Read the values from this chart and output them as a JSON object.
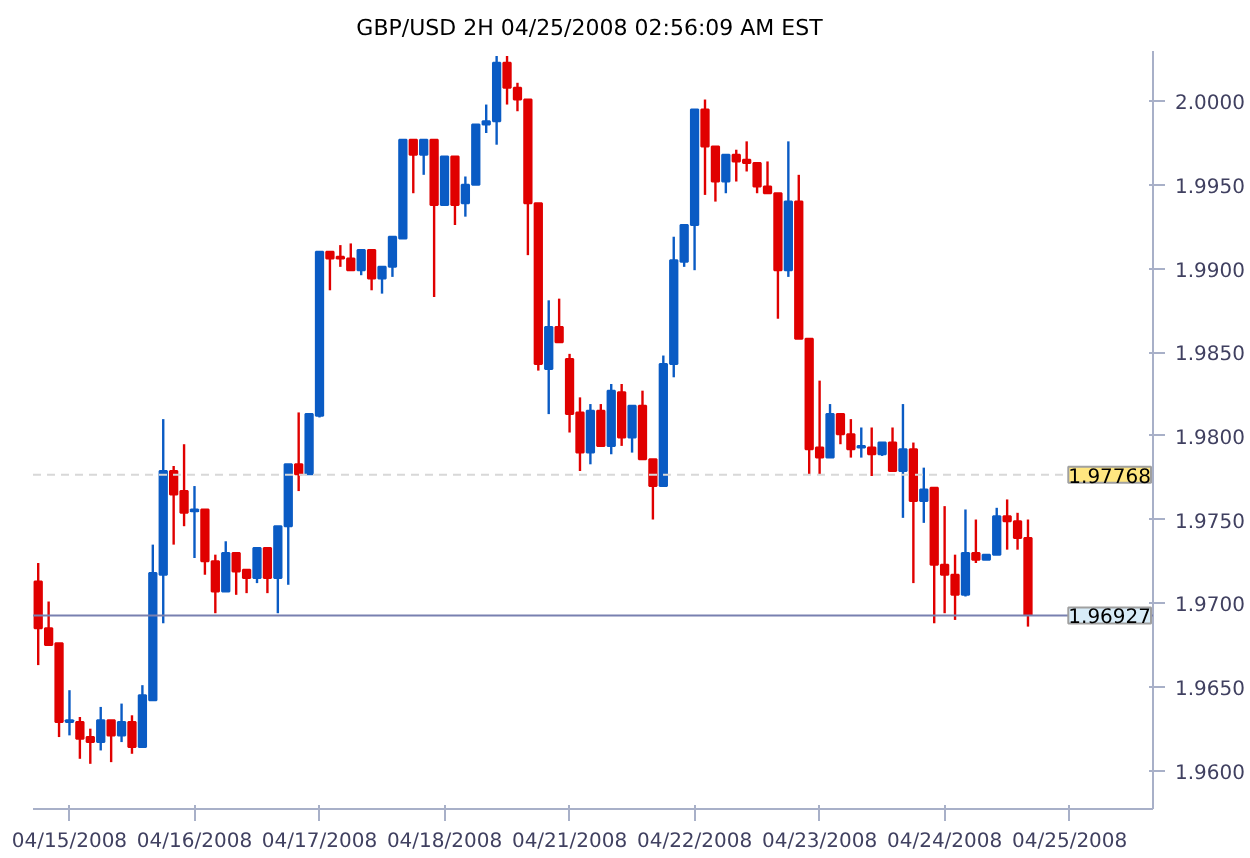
{
  "chart_data": {
    "type": "candlestick",
    "title": "GBP/USD 2H  04/25/2008 02:56:09 AM EST",
    "categories": [
      null,
      null,
      null,
      "04/15/2008",
      null,
      null,
      null,
      null,
      null,
      null,
      null,
      null,
      null,
      null,
      null,
      "04/16/2008",
      null,
      null,
      null,
      null,
      null,
      null,
      null,
      null,
      null,
      null,
      null,
      "04/17/2008",
      null,
      null,
      null,
      null,
      null,
      null,
      null,
      null,
      null,
      null,
      null,
      "04/18/2008",
      null,
      null,
      null,
      null,
      null,
      null,
      null,
      null,
      null,
      null,
      null,
      "04/21/2008",
      null,
      null,
      null,
      null,
      null,
      null,
      null,
      null,
      null,
      null,
      null,
      "04/22/2008",
      null,
      null,
      null,
      null,
      null,
      null,
      null,
      null,
      null,
      null,
      null,
      "04/23/2008",
      null,
      null,
      null,
      null,
      null,
      null,
      null,
      null,
      null,
      null,
      null,
      "04/24/2008",
      null,
      null,
      null,
      null,
      null,
      null,
      null,
      null,
      null,
      null,
      null,
      "04/25/2008"
    ],
    "ohlc": [
      [
        1.9713,
        1.9724,
        1.9663,
        1.9685
      ],
      [
        1.9685,
        1.9701,
        1.9675,
        1.9675
      ],
      [
        1.9676,
        1.9676,
        1.962,
        1.9629
      ],
      [
        1.9629,
        1.9648,
        1.9621,
        1.963
      ],
      [
        1.9629,
        1.9632,
        1.9607,
        1.9619
      ],
      [
        1.962,
        1.9625,
        1.9604,
        1.9617
      ],
      [
        1.9617,
        1.9638,
        1.9612,
        1.963
      ],
      [
        1.963,
        1.963,
        1.9605,
        1.9621
      ],
      [
        1.9621,
        1.964,
        1.9617,
        1.9629
      ],
      [
        1.9629,
        1.9633,
        1.961,
        1.9614
      ],
      [
        1.9614,
        1.9651,
        1.9614,
        1.9645
      ],
      [
        1.9642,
        1.9735,
        1.9642,
        1.9718
      ],
      [
        1.9717,
        1.981,
        1.9688,
        1.9779
      ],
      [
        1.9779,
        1.9782,
        1.9735,
        1.9765
      ],
      [
        1.9767,
        1.9795,
        1.9746,
        1.9754
      ],
      [
        1.9755,
        1.977,
        1.9727,
        1.9756
      ],
      [
        1.9756,
        1.9756,
        1.9717,
        1.9725
      ],
      [
        1.9725,
        1.9729,
        1.9694,
        1.9707
      ],
      [
        1.9707,
        1.9737,
        1.9707,
        1.973
      ],
      [
        1.973,
        1.973,
        1.9705,
        1.9719
      ],
      [
        1.972,
        1.972,
        1.9706,
        1.9715
      ],
      [
        1.9715,
        1.9733,
        1.9712,
        1.9733
      ],
      [
        1.9733,
        1.9733,
        1.9706,
        1.9715
      ],
      [
        1.9715,
        1.9746,
        1.9694,
        1.9746
      ],
      [
        1.9746,
        1.9783,
        1.9711,
        1.9783
      ],
      [
        1.9783,
        1.9814,
        1.9767,
        1.9777
      ],
      [
        1.9777,
        1.9813,
        1.9777,
        1.9813
      ],
      [
        1.9812,
        1.991,
        1.9811,
        1.991
      ],
      [
        1.991,
        1.991,
        1.9887,
        1.9906
      ],
      [
        1.9907,
        1.9914,
        1.9901,
        1.9906
      ],
      [
        1.9906,
        1.9915,
        1.9899,
        1.9899
      ],
      [
        1.9899,
        1.9911,
        1.9896,
        1.9911
      ],
      [
        1.9911,
        1.9911,
        1.9887,
        1.9894
      ],
      [
        1.9894,
        1.9901,
        1.9885,
        1.9901
      ],
      [
        1.9901,
        1.9919,
        1.9895,
        1.9919
      ],
      [
        1.9918,
        1.9977,
        1.9918,
        1.9977
      ],
      [
        1.9977,
        1.9977,
        1.9945,
        1.9968
      ],
      [
        1.9968,
        1.9977,
        1.9956,
        1.9977
      ],
      [
        1.9977,
        1.9977,
        1.9883,
        1.9938
      ],
      [
        1.9938,
        1.9967,
        1.9938,
        1.9967
      ],
      [
        1.9967,
        1.9967,
        1.9926,
        1.9938
      ],
      [
        1.9939,
        1.9955,
        1.9931,
        1.995
      ],
      [
        1.995,
        1.9986,
        1.995,
        1.9986
      ],
      [
        1.9986,
        1.9998,
        1.9981,
        1.9988
      ],
      [
        1.9988,
        2.0027,
        1.9974,
        2.0023
      ],
      [
        2.0023,
        2.0027,
        1.9998,
        2.0008
      ],
      [
        2.0008,
        2.0011,
        1.9994,
        2.0001
      ],
      [
        2.0001,
        2.0001,
        1.9908,
        1.9939
      ],
      [
        1.9939,
        1.9939,
        1.9839,
        1.9843
      ],
      [
        1.984,
        1.9881,
        1.9813,
        1.9865
      ],
      [
        1.9865,
        1.9882,
        1.9856,
        1.9856
      ],
      [
        1.9846,
        1.9849,
        1.9802,
        1.9813
      ],
      [
        1.9814,
        1.9823,
        1.9779,
        1.979
      ],
      [
        1.979,
        1.9819,
        1.9783,
        1.9815
      ],
      [
        1.9815,
        1.9819,
        1.9794,
        1.9794
      ],
      [
        1.9794,
        1.9831,
        1.9789,
        1.9827
      ],
      [
        1.9826,
        1.9831,
        1.9794,
        1.9799
      ],
      [
        1.9799,
        1.9818,
        1.979,
        1.9818
      ],
      [
        1.9818,
        1.9827,
        1.9786,
        1.9786
      ],
      [
        1.9786,
        1.9786,
        1.975,
        1.977
      ],
      [
        1.977,
        1.9848,
        1.977,
        1.9843
      ],
      [
        1.9843,
        1.9919,
        1.9835,
        1.9905
      ],
      [
        1.9904,
        1.9926,
        1.9901,
        1.9926
      ],
      [
        1.9926,
        1.9995,
        1.9899,
        1.9995
      ],
      [
        1.9995,
        2.0001,
        1.9944,
        1.9973
      ],
      [
        1.9973,
        1.9973,
        1.994,
        1.9952
      ],
      [
        1.9952,
        1.9968,
        1.9945,
        1.9968
      ],
      [
        1.9968,
        1.9971,
        1.9952,
        1.9964
      ],
      [
        1.9965,
        1.9976,
        1.9958,
        1.9963
      ],
      [
        1.9963,
        1.9963,
        1.9945,
        1.9949
      ],
      [
        1.9949,
        1.9964,
        1.9945,
        1.9945
      ],
      [
        1.9945,
        1.9945,
        1.987,
        1.9899
      ],
      [
        1.9899,
        1.9976,
        1.9895,
        1.994
      ],
      [
        1.994,
        1.9956,
        1.9858,
        1.9858
      ],
      [
        1.9858,
        1.9858,
        1.9777,
        1.9792
      ],
      [
        1.9793,
        1.9833,
        1.9777,
        1.9787
      ],
      [
        1.9787,
        1.9819,
        1.9787,
        1.9813
      ],
      [
        1.9813,
        1.9813,
        1.9795,
        1.9801
      ],
      [
        1.9801,
        1.981,
        1.9787,
        1.9792
      ],
      [
        1.9793,
        1.9805,
        1.9787,
        1.9794
      ],
      [
        1.9793,
        1.9805,
        1.9776,
        1.9789
      ],
      [
        1.9789,
        1.9796,
        1.9788,
        1.9796
      ],
      [
        1.9796,
        1.9805,
        1.9779,
        1.9779
      ],
      [
        1.9779,
        1.9819,
        1.9751,
        1.9792
      ],
      [
        1.9792,
        1.9796,
        1.9712,
        1.9761
      ],
      [
        1.9761,
        1.9781,
        1.9748,
        1.9768
      ],
      [
        1.9769,
        1.9769,
        1.9688,
        1.9723
      ],
      [
        1.9723,
        1.9758,
        1.9694,
        1.9717
      ],
      [
        1.9717,
        1.9729,
        1.969,
        1.9705
      ],
      [
        1.9705,
        1.9756,
        1.9704,
        1.973
      ],
      [
        1.973,
        1.975,
        1.9724,
        1.9726
      ],
      [
        1.9726,
        1.9729,
        1.9726,
        1.9729
      ],
      [
        1.9729,
        1.9757,
        1.9729,
        1.9752
      ],
      [
        1.9752,
        1.9762,
        1.9732,
        1.9749
      ],
      [
        1.9749,
        1.9754,
        1.9732,
        1.9739
      ],
      [
        1.9739,
        1.975,
        1.9686,
        1.9693
      ],
      null,
      null,
      null,
      null
    ],
    "colors": [
      "#e00000",
      "#e00000",
      "#e00000",
      "#0a5bc4",
      "#e00000",
      "#e00000",
      "#0a5bc4",
      "#e00000",
      "#0a5bc4",
      "#e00000",
      "#0a5bc4",
      "#0a5bc4",
      "#0a5bc4",
      "#e00000",
      "#e00000",
      "#0a5bc4",
      "#e00000",
      "#e00000",
      "#0a5bc4",
      "#e00000",
      "#e00000",
      "#0a5bc4",
      "#e00000",
      "#0a5bc4",
      "#0a5bc4",
      "#e00000",
      "#0a5bc4",
      "#0a5bc4",
      "#e00000",
      "#e00000",
      "#e00000",
      "#0a5bc4",
      "#e00000",
      "#0a5bc4",
      "#0a5bc4",
      "#0a5bc4",
      "#e00000",
      "#0a5bc4",
      "#e00000",
      "#0a5bc4",
      "#e00000",
      "#0a5bc4",
      "#0a5bc4",
      "#0a5bc4",
      "#0a5bc4",
      "#e00000",
      "#e00000",
      "#e00000",
      "#e00000",
      "#0a5bc4",
      "#e00000",
      "#e00000",
      "#e00000",
      "#0a5bc4",
      "#e00000",
      "#0a5bc4",
      "#e00000",
      "#0a5bc4",
      "#e00000",
      "#e00000",
      "#0a5bc4",
      "#0a5bc4",
      "#0a5bc4",
      "#0a5bc4",
      "#e00000",
      "#e00000",
      "#0a5bc4",
      "#e00000",
      "#e00000",
      "#e00000",
      "#e00000",
      "#e00000",
      "#0a5bc4",
      "#e00000",
      "#e00000",
      "#e00000",
      "#0a5bc4",
      "#e00000",
      "#e00000",
      "#0a5bc4",
      "#e00000",
      "#0a5bc4",
      "#e00000",
      "#0a5bc4",
      "#e00000",
      "#0a5bc4",
      "#e00000",
      "#e00000",
      "#e00000",
      "#0a5bc4",
      "#e00000",
      "#0a5bc4",
      "#0a5bc4",
      "#e00000",
      "#e00000",
      "#e00000",
      null,
      null,
      null,
      null
    ],
    "ylim": [
      1.9577,
      2.003
    ],
    "yticks": [
      {
        "value": 1.96,
        "label": "1.9600"
      },
      {
        "value": 1.965,
        "label": "1.9650"
      },
      {
        "value": 1.97,
        "label": "1.9700"
      },
      {
        "value": 1.975,
        "label": "1.9750"
      },
      {
        "value": 1.98,
        "label": "1.9800"
      },
      {
        "value": 1.985,
        "label": "1.9850"
      },
      {
        "value": 1.99,
        "label": "1.9900"
      },
      {
        "value": 1.995,
        "label": "1.9950"
      },
      {
        "value": 2.0,
        "label": "2.0000"
      }
    ],
    "ref_lines": [
      {
        "axis": "y",
        "value": 1.97768,
        "label": "1.97768",
        "color": "#d8d8d8",
        "line_style": "dashed"
      },
      {
        "axis": "y",
        "value": 1.96927,
        "label": "1.96927",
        "color": "#7880b0",
        "line_style": "solid"
      }
    ],
    "grid": false
  }
}
